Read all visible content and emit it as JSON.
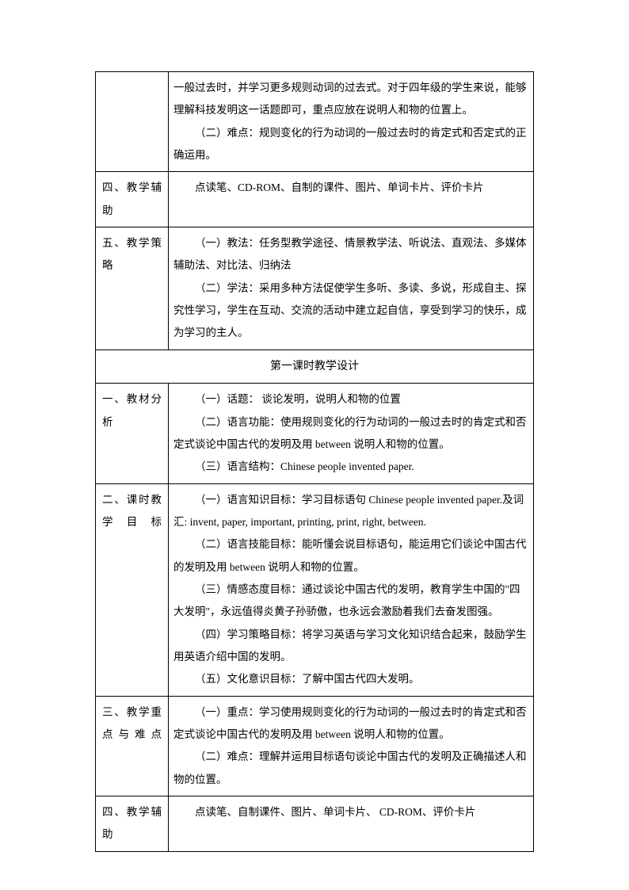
{
  "rows": [
    {
      "label": "",
      "content": [
        {
          "text": "一般过去时，并学习更多规则动词的过去式。对于四年级的学生来说，能够理解科技发明这一话题即可，重点应放在说明人和物的位置上。",
          "indent": false
        },
        {
          "text": "（二）难点：规则变化的行为动词的一般过去时的肯定式和否定式的正确运用。",
          "indent": true
        }
      ]
    },
    {
      "label": "四、教学辅助",
      "content": [
        {
          "text": "点读笔、CD-ROM、自制的课件、图片、单词卡片、评价卡片",
          "indent": true
        }
      ]
    },
    {
      "label": "五、教学策略",
      "content": [
        {
          "text": "（一）教法：任务型教学途径、情景教学法、听说法、直观法、多媒体辅助法、对比法、归纳法",
          "indent": true
        },
        {
          "text": "（二）学法：采用多种方法促使学生多听、多读、多说，形成自主、探究性学习，学生在互动、交流的活动中建立起自信，享受到学习的快乐，成为学习的主人。",
          "indent": true
        }
      ]
    }
  ],
  "section_header": "第一课时教学设计",
  "rows2": [
    {
      "label": "一、教材分析",
      "content": [
        {
          "text": "（一）话题：  谈论发明，说明人和物的位置",
          "indent": true
        },
        {
          "text": "（二）语言功能：使用规则变化的行为动词的一般过去时的肯定式和否定式谈论中国古代的发明及用 between 说明人和物的位置。",
          "indent": true
        },
        {
          "text": "（三）语言结构：Chinese people invented paper.",
          "indent": true
        }
      ]
    },
    {
      "label": "二、课时教学目标",
      "content": [
        {
          "text": "（一）语言知识目标：学习目标语句  Chinese people invented paper.及词汇: invent, paper, important, printing, print, right, between.",
          "indent": true
        },
        {
          "text": "（二）语言技能目标：能听懂会说目标语句，能运用它们谈论中国古代的发明及用 between 说明人和物的位置。",
          "indent": true
        },
        {
          "text": "（三）情感态度目标：通过谈论中国古代的发明，教育学生中国的\"四大发明\"，永远值得炎黄子孙骄傲，也永远会激励着我们去奋发图强。",
          "indent": true
        },
        {
          "text": "（四）学习策略目标：将学习英语与学习文化知识结合起来，鼓励学生用英语介绍中国的发明。",
          "indent": true
        },
        {
          "text": "（五）文化意识目标：了解中国古代四大发明。",
          "indent": true
        }
      ]
    },
    {
      "label": "三、教学重点与难点",
      "content": [
        {
          "text": "（一）重点：学习使用规则变化的行为动词的一般过去时的肯定式和否定式谈论中国古代的发明及用 between 说明人和物的位置。",
          "indent": true
        },
        {
          "text": "（二）难点：理解并运用目标语句谈论中国古代的发明及正确描述人和物的位置。",
          "indent": true
        }
      ]
    },
    {
      "label": "四、教学辅助",
      "content": [
        {
          "text": "点读笔、自制课件、图片、单词卡片、 CD-ROM、评价卡片",
          "indent": true
        }
      ]
    }
  ]
}
